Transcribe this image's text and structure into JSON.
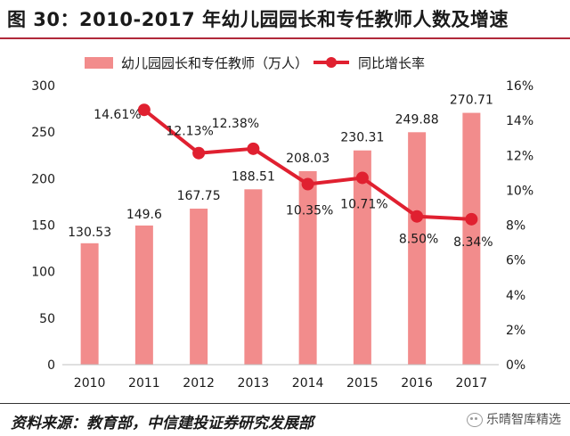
{
  "title": "图 30：2010-2017 年幼儿园园长和专任教师人数及增速",
  "source": "资料来源：教育部，中信建投证券研究发展部",
  "watermark": "乐晴智库精选",
  "colors": {
    "bar": "#f28c8c",
    "line": "#e02030",
    "accent_rule": "#b1283a"
  },
  "chart_data": {
    "type": "bar",
    "categories": [
      "2010",
      "2011",
      "2012",
      "2013",
      "2014",
      "2015",
      "2016",
      "2017"
    ],
    "series": [
      {
        "name": "幼儿园园长和专任教师（万人）",
        "type": "bar",
        "axis": "left",
        "values": [
          130.53,
          149.6,
          167.75,
          188.51,
          208.03,
          230.31,
          249.88,
          270.71
        ],
        "labels": [
          "130.53",
          "149.6",
          "167.75",
          "188.51",
          "208.03",
          "230.31",
          "249.88",
          "270.71"
        ]
      },
      {
        "name": "同比增长率",
        "type": "line",
        "axis": "right",
        "points": [
          {
            "x": "2011",
            "y": 14.61,
            "label": "14.61%"
          },
          {
            "x": "2012",
            "y": 12.13,
            "label": "12.13%"
          },
          {
            "x": "2013",
            "y": 12.38,
            "label": "12.38%"
          },
          {
            "x": "2014",
            "y": 10.35,
            "label": "10.35%"
          },
          {
            "x": "2015",
            "y": 10.71,
            "label": "10.71%"
          },
          {
            "x": "2016",
            "y": 8.5,
            "label": "8.50%"
          },
          {
            "x": "2017",
            "y": 8.34,
            "label": "8.34%"
          }
        ]
      }
    ],
    "y_left": {
      "min": 0,
      "max": 300,
      "ticks": [
        "0",
        "50",
        "100",
        "150",
        "200",
        "250",
        "300"
      ]
    },
    "y_right": {
      "min": 0,
      "max": 16,
      "ticks": [
        "0%",
        "2%",
        "4%",
        "6%",
        "8%",
        "10%",
        "12%",
        "14%",
        "16%"
      ]
    },
    "legend_position": "top",
    "grid": false
  }
}
